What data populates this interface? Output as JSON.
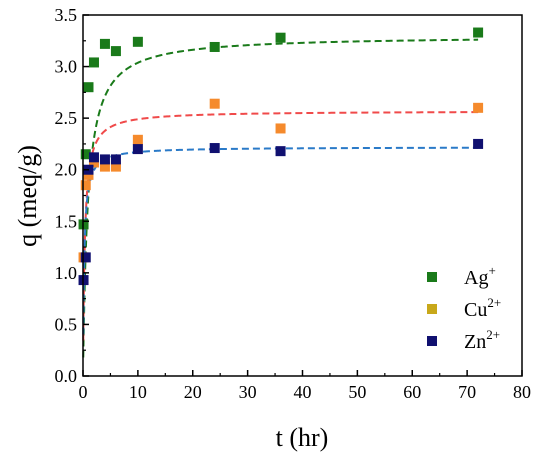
{
  "chart_data": {
    "type": "scatter",
    "xlabel": "t (hr)",
    "ylabel": "q (meq/g)",
    "xlim": [
      0,
      80
    ],
    "ylim": [
      0,
      3.5
    ],
    "xticks": [
      0,
      10,
      20,
      30,
      40,
      50,
      60,
      70,
      80
    ],
    "yticks": [
      0.0,
      0.5,
      1.0,
      1.5,
      2.0,
      2.5,
      3.0,
      3.5
    ],
    "xtick_labels": [
      "0",
      "10",
      "20",
      "30",
      "40",
      "50",
      "60",
      "70",
      "80"
    ],
    "ytick_labels": [
      "0.0",
      "0.5",
      "1.0",
      "1.5",
      "2.0",
      "2.5",
      "3.0",
      "3.5"
    ],
    "grid": false,
    "legend_position": "bottom-right",
    "series": [
      {
        "name": "Ag+",
        "label_base": "Ag",
        "label_sup": "+",
        "marker_color": "#1a7a1a",
        "legend_color": "#1a7a1a",
        "line_color": "#1a7a1a",
        "x": [
          0.1,
          0.5,
          1,
          2,
          4,
          6,
          10,
          24,
          36,
          72
        ],
        "y": [
          1.47,
          2.15,
          2.8,
          3.04,
          3.22,
          3.15,
          3.24,
          3.19,
          3.28,
          3.33
        ],
        "fit": {
          "qe": 3.3,
          "k": 0.35
        }
      },
      {
        "name": "Cu2+",
        "label_base": "Cu",
        "label_sup": "2+",
        "marker_color": "#f58a2c",
        "legend_color": "#c8a81a",
        "line_color": "#f04a4a",
        "x": [
          0.1,
          0.5,
          1,
          2,
          4,
          6,
          10,
          24,
          36,
          72
        ],
        "y": [
          1.15,
          1.85,
          1.95,
          2.07,
          2.03,
          2.03,
          2.29,
          2.64,
          2.4,
          2.6
        ],
        "fit": {
          "qe": 2.57,
          "k": 1.2
        }
      },
      {
        "name": "Zn2+",
        "label_base": "Zn",
        "label_sup": "2+",
        "marker_color": "#101070",
        "legend_color": "#101070",
        "line_color": "#2a7ac8",
        "x": [
          0.1,
          0.5,
          1,
          2,
          4,
          6,
          10,
          24,
          36,
          72
        ],
        "y": [
          0.93,
          1.15,
          2.0,
          2.12,
          2.1,
          2.1,
          2.2,
          2.21,
          2.18,
          2.25
        ],
        "fit": {
          "qe": 2.22,
          "k": 2.0
        }
      }
    ]
  }
}
